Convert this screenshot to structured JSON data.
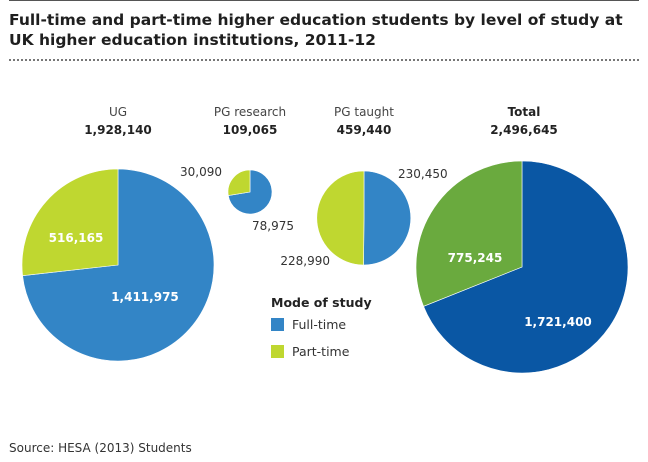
{
  "title": "Full-time and part-time higher education students by level of study at UK higher education institutions, 2011-12",
  "source": "Source: HESA (2013) Students",
  "chart_data": {
    "type": "pie",
    "title": "Full-time and part-time higher education students by level of study at UK higher education institutions, 2011-12",
    "legend": {
      "title": "Mode of study",
      "entries": [
        {
          "name": "Full-time",
          "color": "#3385c6"
        },
        {
          "name": "Part-time",
          "color": "#bfd730"
        }
      ]
    },
    "pies": [
      {
        "id": "ug",
        "name": "UG",
        "total_label": "1,928,140",
        "slices": [
          {
            "name": "Full-time",
            "value": 1411975,
            "label": "1,411,975",
            "color": "#3385c6"
          },
          {
            "name": "Part-time",
            "value": 516165,
            "label": "516,165",
            "color": "#bfd730"
          }
        ]
      },
      {
        "id": "pgr",
        "name": "PG research",
        "total_label": "109,065",
        "slices": [
          {
            "name": "Full-time",
            "value": 78975,
            "label": "78,975",
            "color": "#3385c6"
          },
          {
            "name": "Part-time",
            "value": 30090,
            "label": "30,090",
            "color": "#bfd730"
          }
        ]
      },
      {
        "id": "pgt",
        "name": "PG taught",
        "total_label": "459,440",
        "slices": [
          {
            "name": "Full-time",
            "value": 230450,
            "label": "230,450",
            "color": "#3385c6"
          },
          {
            "name": "Part-time",
            "value": 228990,
            "label": "228,990",
            "color": "#bfd730"
          }
        ]
      },
      {
        "id": "total",
        "name": "Total",
        "total_label": "2,496,645",
        "slices": [
          {
            "name": "Full-time",
            "value": 1721400,
            "label": "1,721,400",
            "color": "#0a57a4"
          },
          {
            "name": "Part-time",
            "value": 775245,
            "label": "775,245",
            "color": "#6aaa3e"
          }
        ]
      }
    ]
  }
}
